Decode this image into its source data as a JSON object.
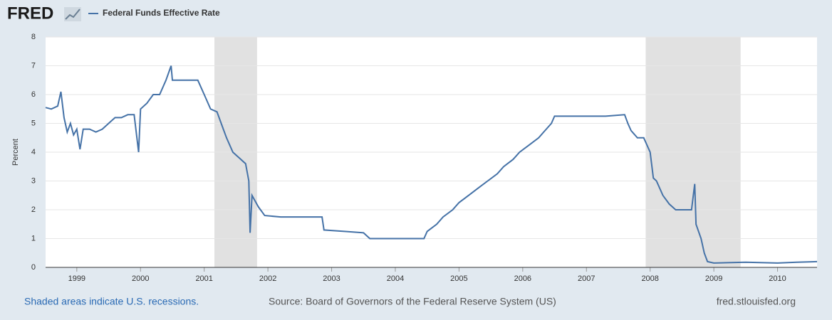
{
  "logo": "FRED",
  "footer": {
    "note": "Shaded areas indicate U.S. recessions.",
    "source": "Source: Board of Governors of the Federal Reserve System (US)",
    "site": "fred.stlouisfed.org"
  },
  "chart_data": {
    "type": "line",
    "ylabel": "Percent",
    "x": [
      1998.51,
      1998.6,
      1998.7,
      1998.75,
      1998.8,
      1998.85,
      1998.9,
      1998.95,
      1999.0,
      1999.05,
      1999.1,
      1999.2,
      1999.3,
      1999.4,
      1999.5,
      1999.6,
      1999.7,
      1999.8,
      1999.9,
      1999.97,
      2000.0,
      2000.1,
      2000.2,
      2000.3,
      2000.4,
      2000.48,
      2000.5,
      2000.7,
      2000.9,
      2001.0,
      2001.1,
      2001.2,
      2001.3,
      2001.35,
      2001.45,
      2001.55,
      2001.65,
      2001.7,
      2001.72,
      2001.75,
      2001.85,
      2001.95,
      2002.2,
      2002.5,
      2002.85,
      2002.88,
      2003.2,
      2003.5,
      2003.6,
      2003.9,
      2004.2,
      2004.45,
      2004.5,
      2004.65,
      2004.75,
      2004.9,
      2005.0,
      2005.15,
      2005.3,
      2005.45,
      2005.6,
      2005.7,
      2005.85,
      2005.95,
      2006.1,
      2006.25,
      2006.35,
      2006.45,
      2006.5,
      2006.7,
      2007.0,
      2007.3,
      2007.6,
      2007.65,
      2007.7,
      2007.8,
      2007.9,
      2008.0,
      2008.05,
      2008.1,
      2008.2,
      2008.3,
      2008.4,
      2008.5,
      2008.65,
      2008.7,
      2008.72,
      2008.8,
      2008.85,
      2008.9,
      2009.0,
      2009.5,
      2010.0,
      2010.3,
      2010.62
    ],
    "series": [
      {
        "name": "Federal Funds Effective Rate",
        "color": "#4572a7",
        "values": [
          5.55,
          5.5,
          5.6,
          6.1,
          5.2,
          4.7,
          5.0,
          4.6,
          4.8,
          4.1,
          4.8,
          4.8,
          4.7,
          4.8,
          5.0,
          5.2,
          5.2,
          5.3,
          5.3,
          4.0,
          5.5,
          5.7,
          6.0,
          6.0,
          6.5,
          7.0,
          6.5,
          6.5,
          6.5,
          6.0,
          5.5,
          5.4,
          4.8,
          4.5,
          4.0,
          3.8,
          3.6,
          3.0,
          1.2,
          2.5,
          2.1,
          1.8,
          1.75,
          1.75,
          1.75,
          1.3,
          1.25,
          1.2,
          1.0,
          1.0,
          1.0,
          1.0,
          1.25,
          1.5,
          1.75,
          2.0,
          2.25,
          2.5,
          2.75,
          3.0,
          3.25,
          3.5,
          3.75,
          4.0,
          4.25,
          4.5,
          4.75,
          5.0,
          5.25,
          5.25,
          5.25,
          5.25,
          5.3,
          5.0,
          4.75,
          4.5,
          4.5,
          4.0,
          3.1,
          3.0,
          2.5,
          2.2,
          2.0,
          2.0,
          2.0,
          2.9,
          1.5,
          1.0,
          0.5,
          0.2,
          0.15,
          0.18,
          0.15,
          0.18,
          0.2
        ]
      }
    ],
    "recessions": [
      [
        2001.16,
        2001.83
      ],
      [
        2007.93,
        2009.42
      ]
    ],
    "xlim": [
      1998.51,
      2010.62
    ],
    "xticks": [
      1999,
      2000,
      2001,
      2002,
      2003,
      2004,
      2005,
      2006,
      2007,
      2008,
      2009,
      2010
    ],
    "ylim": [
      0,
      8
    ],
    "yticks": [
      0,
      1,
      2,
      3,
      4,
      5,
      6,
      7,
      8
    ],
    "grid": true
  }
}
